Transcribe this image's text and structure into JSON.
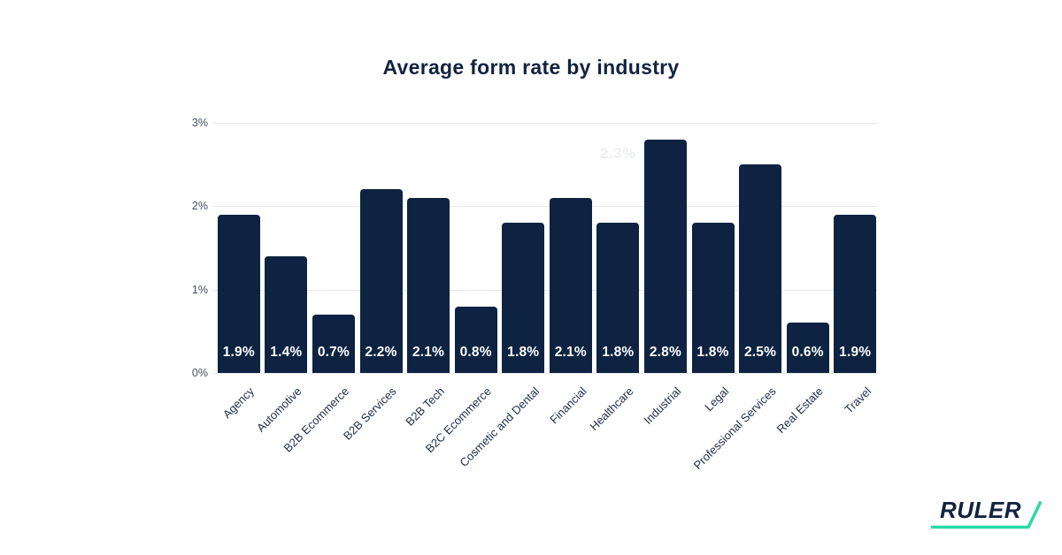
{
  "page": {
    "background_color": "#ffffff"
  },
  "header": {
    "title": "Average form rate by industry"
  },
  "chart_data": {
    "type": "bar",
    "title": "Average form rate by industry",
    "categories": [
      "Agency",
      "Automotive",
      "B2B Ecommerce",
      "B2B Services",
      "B2B Tech",
      "B2C Ecommerce",
      "Cosmetic and Dental",
      "Financial",
      "Healthcare",
      "Industrial",
      "Legal",
      "Professional Services",
      "Real Estate",
      "Travel"
    ],
    "values": [
      1.9,
      1.4,
      0.7,
      2.2,
      2.1,
      0.8,
      1.8,
      2.1,
      1.8,
      2.8,
      1.8,
      2.5,
      0.6,
      1.9
    ],
    "value_labels": [
      "1.9%",
      "1.4%",
      "0.7%",
      "2.2%",
      "2.1%",
      "0.8%",
      "1.8%",
      "2.1%",
      "1.8%",
      "2.8%",
      "1.8%",
      "2.5%",
      "0.6%",
      "1.9%"
    ],
    "y_ticks": [
      "0%",
      "1%",
      "2%",
      "3%"
    ],
    "ylim": [
      0,
      3
    ],
    "xlabel": "",
    "ylabel": "",
    "grid": "horizontal",
    "legend": "none",
    "bar_color": "#0d2341",
    "value_label_color": "#ffffff",
    "gridline_color": "#e8e8e8",
    "ghost_label": "2.3%"
  },
  "branding": {
    "logo_text": "RULER",
    "accent_color": "#2bd9a4",
    "logo_text_color": "#12233f"
  }
}
